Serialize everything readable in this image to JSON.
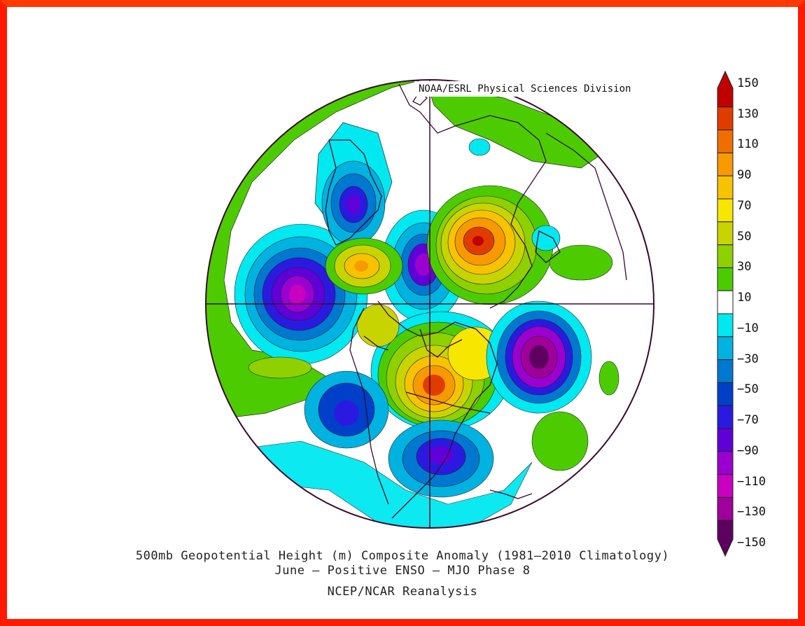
{
  "credit": "NOAA/ESRL Physical Sciences Division",
  "caption": {
    "line1": "500mb Geopotential Height (m) Composite Anomaly (1981–2010 Climatology)",
    "line2": "June – Positive ENSO – MJO Phase 8",
    "line3": "NCEP/NCAR Reanalysis"
  },
  "colorbar": {
    "labels": [
      "150",
      "130",
      "110",
      "90",
      "70",
      "50",
      "30",
      "10",
      "−10",
      "−30",
      "−50",
      "−70",
      "−90",
      "−110",
      "−130",
      "−150"
    ],
    "colors": [
      "#c00000",
      "#e03c00",
      "#f06e00",
      "#f79a00",
      "#f7c200",
      "#f7e600",
      "#c8d400",
      "#8ed000",
      "#4ccc00",
      "#ffffff",
      "#00e8f0",
      "#00b2e0",
      "#0078d0",
      "#0040c8",
      "#2a1ae0",
      "#6000d8",
      "#9a00d0",
      "#c800c0",
      "#a0009a",
      "#5e0060"
    ]
  },
  "colors": {
    "frame": "#ff1a00",
    "boundaries": "#3a0a2a"
  }
}
